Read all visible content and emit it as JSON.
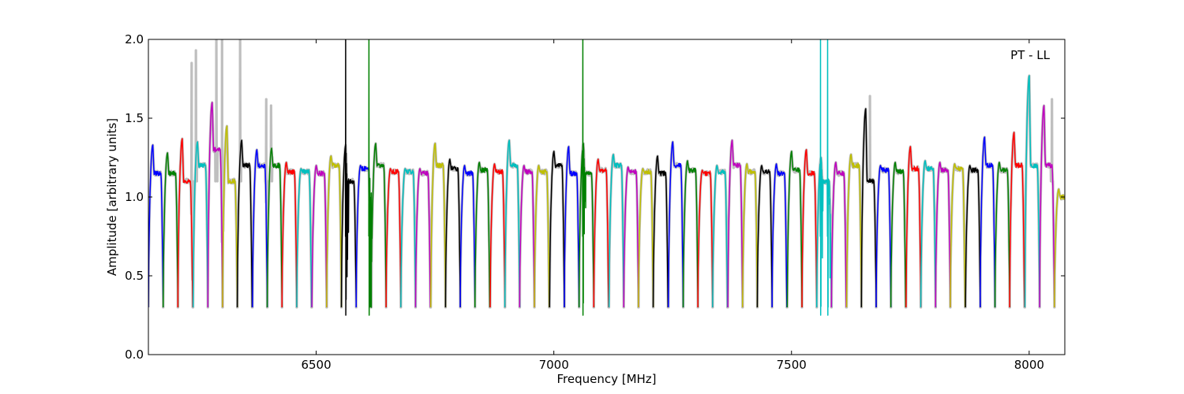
{
  "chart_data": {
    "type": "line",
    "title": "",
    "xlabel": "Frequency [MHz]",
    "ylabel": "Amplitude [arbitrary units]",
    "annotation": "PT - LL",
    "xlim": [
      6147,
      8075
    ],
    "ylim": [
      0.0,
      2.0
    ],
    "x_ticks": [
      6500,
      7000,
      7500,
      8000
    ],
    "x_tick_labels": [
      "6500",
      "7000",
      "7500",
      "8000"
    ],
    "y_ticks": [
      0.0,
      0.5,
      1.0,
      1.5,
      2.0
    ],
    "y_tick_labels": [
      "0.0",
      "0.5",
      "1.0",
      "1.5",
      "2.0"
    ],
    "grid": false,
    "legend": "none",
    "background_series": {
      "color": "#bfbfbf",
      "description": "raw unflagged bandpass (grey)",
      "peaks": [
        {
          "x": 6238,
          "y": 1.85
        },
        {
          "x": 6247,
          "y": 1.93
        },
        {
          "x": 6290,
          "y": 2.0
        },
        {
          "x": 6302,
          "y": 2.0
        },
        {
          "x": 6340,
          "y": 2.0
        },
        {
          "x": 6395,
          "y": 1.62
        },
        {
          "x": 6405,
          "y": 1.58
        },
        {
          "x": 7665,
          "y": 1.64
        },
        {
          "x": 8048,
          "y": 1.62
        }
      ]
    },
    "color_cycle": [
      "#0000ff",
      "#008000",
      "#ff0000",
      "#00bfbf",
      "#bf00bf",
      "#bfbf00",
      "#000000"
    ],
    "window_width_mhz": 31.25,
    "trough_level": 0.3,
    "windows": [
      {
        "start": 6147,
        "peak": 1.33,
        "flat": 1.15
      },
      {
        "start": 6178,
        "peak": 1.28,
        "flat": 1.15
      },
      {
        "start": 6209,
        "peak": 1.37,
        "flat": 1.1
      },
      {
        "start": 6241,
        "peak": 1.35,
        "flat": 1.2
      },
      {
        "start": 6272,
        "peak": 1.6,
        "flat": 1.3
      },
      {
        "start": 6303,
        "peak": 1.45,
        "flat": 1.1
      },
      {
        "start": 6334,
        "peak": 1.36,
        "flat": 1.2
      },
      {
        "start": 6366,
        "peak": 1.3,
        "flat": 1.2
      },
      {
        "start": 6397,
        "peak": 1.31,
        "flat": 1.2
      },
      {
        "start": 6428,
        "peak": 1.22,
        "flat": 1.16
      },
      {
        "start": 6459,
        "peak": 1.18,
        "flat": 1.16
      },
      {
        "start": 6491,
        "peak": 1.2,
        "flat": 1.15
      },
      {
        "start": 6522,
        "peak": 1.26,
        "flat": 1.2
      },
      {
        "start": 6553,
        "peak": 1.33,
        "flat": 1.1,
        "rfi": [
          {
            "x": 6562,
            "y": 2.0
          }
        ]
      },
      {
        "start": 6584,
        "peak": 1.2,
        "flat": 1.18
      },
      {
        "start": 6616,
        "peak": 1.34,
        "flat": 1.2,
        "rfi": [
          {
            "x": 6611,
            "y": 2.0
          }
        ]
      },
      {
        "start": 6647,
        "peak": 1.18,
        "flat": 1.16
      },
      {
        "start": 6678,
        "peak": 1.18,
        "flat": 1.16
      },
      {
        "start": 6709,
        "peak": 1.18,
        "flat": 1.15
      },
      {
        "start": 6741,
        "peak": 1.34,
        "flat": 1.2
      },
      {
        "start": 6772,
        "peak": 1.24,
        "flat": 1.18
      },
      {
        "start": 6803,
        "peak": 1.2,
        "flat": 1.15
      },
      {
        "start": 6834,
        "peak": 1.22,
        "flat": 1.17
      },
      {
        "start": 6866,
        "peak": 1.21,
        "flat": 1.16
      },
      {
        "start": 6897,
        "peak": 1.36,
        "flat": 1.2
      },
      {
        "start": 6928,
        "peak": 1.2,
        "flat": 1.16
      },
      {
        "start": 6959,
        "peak": 1.2,
        "flat": 1.16
      },
      {
        "start": 6991,
        "peak": 1.29,
        "flat": 1.2
      },
      {
        "start": 7022,
        "peak": 1.32,
        "flat": 1.15
      },
      {
        "start": 7053,
        "peak": 1.34,
        "flat": 1.15,
        "rfi": [
          {
            "x": 7061,
            "y": 2.0
          }
        ]
      },
      {
        "start": 7084,
        "peak": 1.24,
        "flat": 1.17
      },
      {
        "start": 7116,
        "peak": 1.27,
        "flat": 1.2
      },
      {
        "start": 7147,
        "peak": 1.19,
        "flat": 1.16
      },
      {
        "start": 7178,
        "peak": 1.18,
        "flat": 1.16
      },
      {
        "start": 7209,
        "peak": 1.26,
        "flat": 1.15
      },
      {
        "start": 7241,
        "peak": 1.35,
        "flat": 1.2
      },
      {
        "start": 7272,
        "peak": 1.23,
        "flat": 1.17
      },
      {
        "start": 7303,
        "peak": 1.17,
        "flat": 1.15
      },
      {
        "start": 7334,
        "peak": 1.2,
        "flat": 1.16
      },
      {
        "start": 7366,
        "peak": 1.36,
        "flat": 1.2
      },
      {
        "start": 7397,
        "peak": 1.21,
        "flat": 1.16
      },
      {
        "start": 7428,
        "peak": 1.2,
        "flat": 1.16
      },
      {
        "start": 7459,
        "peak": 1.21,
        "flat": 1.15
      },
      {
        "start": 7491,
        "peak": 1.29,
        "flat": 1.17
      },
      {
        "start": 7522,
        "peak": 1.3,
        "flat": 1.15
      },
      {
        "start": 7553,
        "peak": 1.25,
        "flat": 1.1,
        "rfi": [
          {
            "x": 7561,
            "y": 2.0
          },
          {
            "x": 7576,
            "y": 2.0
          }
        ]
      },
      {
        "start": 7584,
        "peak": 1.22,
        "flat": 1.15
      },
      {
        "start": 7616,
        "peak": 1.27,
        "flat": 1.2
      },
      {
        "start": 7647,
        "peak": 1.56,
        "flat": 1.1
      },
      {
        "start": 7678,
        "peak": 1.2,
        "flat": 1.17
      },
      {
        "start": 7709,
        "peak": 1.22,
        "flat": 1.16
      },
      {
        "start": 7741,
        "peak": 1.32,
        "flat": 1.18
      },
      {
        "start": 7772,
        "peak": 1.23,
        "flat": 1.18
      },
      {
        "start": 7803,
        "peak": 1.22,
        "flat": 1.17
      },
      {
        "start": 7834,
        "peak": 1.21,
        "flat": 1.18
      },
      {
        "start": 7866,
        "peak": 1.2,
        "flat": 1.17
      },
      {
        "start": 7897,
        "peak": 1.38,
        "flat": 1.2
      },
      {
        "start": 7928,
        "peak": 1.22,
        "flat": 1.17
      },
      {
        "start": 7959,
        "peak": 1.41,
        "flat": 1.2
      },
      {
        "start": 7991,
        "peak": 1.77,
        "flat": 1.2
      },
      {
        "start": 8022,
        "peak": 1.58,
        "flat": 1.2
      },
      {
        "start": 8053,
        "peak": 1.05,
        "flat": 1.0
      }
    ]
  }
}
